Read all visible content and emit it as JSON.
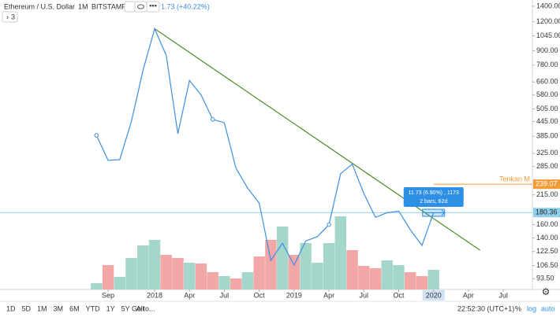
{
  "header": {
    "symbol": "Ethereum / U.S. Dollar",
    "interval": "1M",
    "exchange": "BITSTAMP",
    "change": "1.73 (+40.22%)",
    "collapse": "3"
  },
  "chart_data": {
    "type": "line",
    "log_scale": true,
    "grid": false,
    "x": [
      0,
      1,
      2,
      3,
      4,
      5,
      6,
      7,
      8,
      9,
      10,
      11,
      12,
      13,
      14,
      15,
      16,
      17,
      18,
      19,
      20,
      21,
      22,
      23,
      24,
      25,
      26,
      27,
      28,
      29
    ],
    "xlim": [
      -8.3,
      37.5
    ],
    "xticks": [
      {
        "value": 1,
        "label": "Sep"
      },
      {
        "value": 5,
        "label": "2018"
      },
      {
        "value": 8,
        "label": "Apr"
      },
      {
        "value": 11,
        "label": "Jul"
      },
      {
        "value": 14,
        "label": "Oct"
      },
      {
        "value": 17,
        "label": "2019"
      },
      {
        "value": 20,
        "label": "Apr"
      },
      {
        "value": 23,
        "label": "Jul"
      },
      {
        "value": 26,
        "label": "Oct"
      },
      {
        "value": 29,
        "label": "2020"
      },
      {
        "value": 32,
        "label": "Apr"
      },
      {
        "value": 35,
        "label": "Jul"
      }
    ],
    "highlight_xtick": 9,
    "series": [
      {
        "color": "#3d8fe0",
        "values": [
          388,
          303,
          305,
          445,
          740,
          1120,
          860,
          395,
          670,
          580,
          455,
          440,
          280,
          230,
          198,
          112,
          133,
          107,
          136,
          142,
          160,
          265,
          292,
          218,
          172,
          180,
          183,
          152,
          130,
          180
        ]
      }
    ],
    "markers": [
      0,
      10,
      20
    ],
    "ylim": [
      84,
      1490
    ],
    "yticks": [
      {
        "value": 1400,
        "label": "1400.00"
      },
      {
        "value": 1200,
        "label": "1200.00"
      },
      {
        "value": 1045,
        "label": "1045.00"
      },
      {
        "value": 900,
        "label": "900.00"
      },
      {
        "value": 780,
        "label": "780.00"
      },
      {
        "value": 660,
        "label": "660.00"
      },
      {
        "value": 580,
        "label": "580.00"
      },
      {
        "value": 505,
        "label": "505.00"
      },
      {
        "value": 445,
        "label": "445.00"
      },
      {
        "value": 385,
        "label": "385.00"
      },
      {
        "value": 325,
        "label": "325.00"
      },
      {
        "value": 285,
        "label": "285.00"
      },
      {
        "value": 215,
        "label": "215.00"
      },
      {
        "value": 160,
        "label": "160.00"
      },
      {
        "value": 140,
        "label": "140.00"
      },
      {
        "value": 122.5,
        "label": "122.50"
      },
      {
        "value": 106.5,
        "label": "106.50"
      },
      {
        "value": 93.5,
        "label": "93.50"
      }
    ],
    "volume": {
      "values": [
        8,
        31,
        16,
        40,
        56,
        63,
        44,
        40,
        34,
        33,
        22,
        17,
        14,
        22,
        42,
        63,
        80,
        44,
        59,
        34,
        59,
        93,
        50,
        30,
        27,
        37,
        31,
        22,
        17,
        25
      ],
      "colors": [
        "#a5d6cc",
        "#f2a7a7",
        "#a5d6cc",
        "#a5d6cc",
        "#a5d6cc",
        "#a5d6cc",
        "#f2a7a7",
        "#f2a7a7",
        "#a5d6cc",
        "#f2a7a7",
        "#f2a7a7",
        "#a5d6cc",
        "#f2a7a7",
        "#a5d6cc",
        "#f2a7a7",
        "#f2a7a7",
        "#a5d6cc",
        "#f2a7a7",
        "#a5d6cc",
        "#a5d6cc",
        "#a5d6cc",
        "#a5d6cc",
        "#f2a7a7",
        "#f2a7a7",
        "#f2a7a7",
        "#a5d6cc",
        "#a5d6cc",
        "#f2a7a7",
        "#f2a7a7",
        "#a5d6cc"
      ]
    },
    "trendline": {
      "color": "#4e8c2b",
      "x": [
        5,
        33
      ],
      "values": [
        1120,
        124
      ]
    },
    "price_lines": [
      {
        "value": 239.07,
        "name": "Tenkan M",
        "color": "#f29b38",
        "from": 29
      },
      {
        "value": 180.36,
        "color": "#8fcfe8",
        "from": -8.3
      }
    ],
    "measure": {
      "line1": "11.73 (6.90%) , 1173",
      "line2": "2 bars, 62d"
    }
  },
  "toolbar": {
    "ranges": [
      "1D",
      "5D",
      "1M",
      "3M",
      "6M",
      "YTD",
      "1Y",
      "5Y",
      "All"
    ],
    "goto": "Go to...",
    "clock": "22:52:30 (UTC+1)",
    "options": [
      "%",
      "log",
      "auto"
    ]
  }
}
